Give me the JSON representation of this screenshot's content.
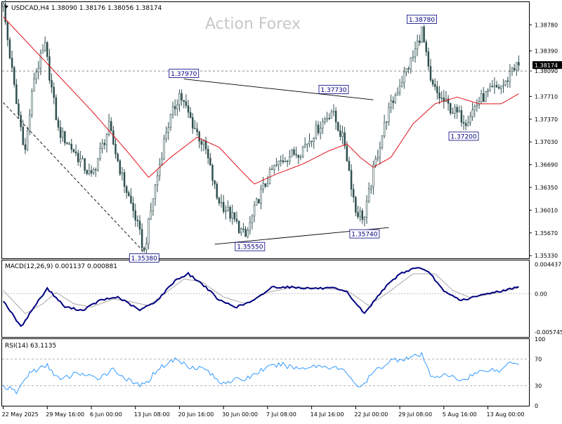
{
  "header": {
    "symbol_line": "USDCAD,H4  1.38090 1.38176 1.38056 1.38174",
    "watermark": "Action Forex"
  },
  "colors": {
    "candle": "#2f4f4f",
    "ma": "#e0101c",
    "macd": "#000080",
    "signal": "#a8a8a8",
    "rsi": "#1e90ff",
    "grid": "#c0c0c0",
    "bid_label_bg": "#000000",
    "bid_label_text": "#ffffff"
  },
  "chart_data": [
    {
      "type": "candlestick",
      "panel": "price",
      "title": "USDCAD,H4",
      "ohlc_header": {
        "open": 1.3809,
        "high": 1.38176,
        "low": 1.38056,
        "close": 1.38174
      },
      "ylim": [
        1.3529,
        1.3912
      ],
      "y_ticks": [
        "1.38780",
        "1.38390",
        "1.38090",
        "1.37710",
        "1.37370",
        "1.37030",
        "1.36690",
        "1.36350",
        "1.36010",
        "1.35670",
        "1.35330"
      ],
      "y_tick_values": [
        1.3878,
        1.3839,
        1.3809,
        1.3771,
        1.3737,
        1.3703,
        1.3669,
        1.3635,
        1.3601,
        1.3567,
        1.3533
      ],
      "current_price_label": "1.38174",
      "current_price": 1.38174,
      "reference_line": 1.3809,
      "x_labels": [
        "22 May 2025",
        "29 May 16:00",
        "6 Jun 00:00",
        "13 Jun 08:00",
        "20 Jun 16:00",
        "30 Jun 00:00",
        "7 Jul 08:00",
        "14 Jul 16:00",
        "22 Jul 00:00",
        "29 Jul 08:00",
        "5 Aug 16:00",
        "13 Aug 00:00"
      ],
      "x_label_bars": [
        0,
        20,
        40,
        60,
        80,
        100,
        120,
        140,
        160,
        180,
        200,
        220
      ],
      "bar_count": 235,
      "anchors": [
        {
          "bar": 0,
          "price": 1.3905
        },
        {
          "bar": 6,
          "price": 1.376
        },
        {
          "bar": 10,
          "price": 1.369
        },
        {
          "bar": 14,
          "price": 1.38
        },
        {
          "bar": 19,
          "price": 1.3845
        },
        {
          "bar": 25,
          "price": 1.372
        },
        {
          "bar": 32,
          "price": 1.369
        },
        {
          "bar": 40,
          "price": 1.365
        },
        {
          "bar": 48,
          "price": 1.3725
        },
        {
          "bar": 54,
          "price": 1.365
        },
        {
          "bar": 60,
          "price": 1.359
        },
        {
          "bar": 64,
          "price": 1.3538
        },
        {
          "bar": 68,
          "price": 1.362
        },
        {
          "bar": 74,
          "price": 1.372
        },
        {
          "bar": 80,
          "price": 1.3775
        },
        {
          "bar": 86,
          "price": 1.373
        },
        {
          "bar": 92,
          "price": 1.369
        },
        {
          "bar": 97,
          "price": 1.362
        },
        {
          "bar": 104,
          "price": 1.359
        },
        {
          "bar": 110,
          "price": 1.356
        },
        {
          "bar": 116,
          "price": 1.362
        },
        {
          "bar": 122,
          "price": 1.366
        },
        {
          "bar": 128,
          "price": 1.368
        },
        {
          "bar": 135,
          "price": 1.369
        },
        {
          "bar": 142,
          "price": 1.372
        },
        {
          "bar": 149,
          "price": 1.375
        },
        {
          "bar": 155,
          "price": 1.37
        },
        {
          "bar": 160,
          "price": 1.36
        },
        {
          "bar": 164,
          "price": 1.359
        },
        {
          "bar": 168,
          "price": 1.366
        },
        {
          "bar": 174,
          "price": 1.374
        },
        {
          "bar": 180,
          "price": 1.379
        },
        {
          "bar": 186,
          "price": 1.383
        },
        {
          "bar": 190,
          "price": 1.387
        },
        {
          "bar": 194,
          "price": 1.379
        },
        {
          "bar": 198,
          "price": 1.377
        },
        {
          "bar": 204,
          "price": 1.375
        },
        {
          "bar": 210,
          "price": 1.3735
        },
        {
          "bar": 216,
          "price": 1.3765
        },
        {
          "bar": 222,
          "price": 1.378
        },
        {
          "bar": 228,
          "price": 1.379
        },
        {
          "bar": 231,
          "price": 1.3815
        },
        {
          "bar": 234,
          "price": 1.3817
        }
      ],
      "moving_average": [
        {
          "bar": 0,
          "price": 1.389
        },
        {
          "bar": 20,
          "price": 1.382
        },
        {
          "bar": 40,
          "price": 1.375
        },
        {
          "bar": 56,
          "price": 1.369
        },
        {
          "bar": 66,
          "price": 1.365
        },
        {
          "bar": 76,
          "price": 1.368
        },
        {
          "bar": 88,
          "price": 1.371
        },
        {
          "bar": 98,
          "price": 1.3695
        },
        {
          "bar": 108,
          "price": 1.366
        },
        {
          "bar": 114,
          "price": 1.364
        },
        {
          "bar": 124,
          "price": 1.3655
        },
        {
          "bar": 136,
          "price": 1.367
        },
        {
          "bar": 148,
          "price": 1.369
        },
        {
          "bar": 156,
          "price": 1.37
        },
        {
          "bar": 162,
          "price": 1.368
        },
        {
          "bar": 168,
          "price": 1.3665
        },
        {
          "bar": 176,
          "price": 1.368
        },
        {
          "bar": 186,
          "price": 1.373
        },
        {
          "bar": 196,
          "price": 1.376
        },
        {
          "bar": 206,
          "price": 1.377
        },
        {
          "bar": 216,
          "price": 1.376
        },
        {
          "bar": 226,
          "price": 1.376
        },
        {
          "bar": 234,
          "price": 1.3775
        }
      ],
      "annotations": [
        {
          "label": "1.35380",
          "bar": 64,
          "price": 1.3538,
          "anchor": "below"
        },
        {
          "label": "1.37970",
          "bar": 82,
          "price": 1.3797,
          "anchor": "above"
        },
        {
          "label": "1.35550",
          "bar": 112,
          "price": 1.3555,
          "anchor": "below"
        },
        {
          "label": "1.37730",
          "bar": 150,
          "price": 1.3773,
          "anchor": "above"
        },
        {
          "label": "1.35740",
          "bar": 164,
          "price": 1.3574,
          "anchor": "below"
        },
        {
          "label": "1.38780",
          "bar": 190,
          "price": 1.3878,
          "anchor": "above"
        },
        {
          "label": "1.37200",
          "bar": 209,
          "price": 1.372,
          "anchor": "below"
        }
      ],
      "trendlines": [
        {
          "from": {
            "bar": 0,
            "price": 1.3762
          },
          "to": {
            "bar": 64,
            "price": 1.3538
          },
          "style": "dashed"
        },
        {
          "from": {
            "bar": 82,
            "price": 1.3797
          },
          "to": {
            "bar": 168,
            "price": 1.3766
          },
          "style": "solid"
        },
        {
          "from": {
            "bar": 96,
            "price": 1.355
          },
          "to": {
            "bar": 175,
            "price": 1.3575
          },
          "style": "solid"
        }
      ]
    },
    {
      "type": "line",
      "panel": "macd",
      "title": "MACD(12,26,9) 0.001137 0.000881",
      "ylim": [
        -0.0065,
        0.005
      ],
      "y_ticks": [
        "0.004437",
        "0.00",
        "-0.005745"
      ],
      "y_tick_values": [
        0.004437,
        0.0,
        -0.005745
      ],
      "marker_labels": [
        "0.001137",
        "0.000881"
      ],
      "macd_anchors": [
        {
          "bar": 0,
          "v": -0.001
        },
        {
          "bar": 8,
          "v": -0.005
        },
        {
          "bar": 14,
          "v": -0.002
        },
        {
          "bar": 20,
          "v": 0.0008
        },
        {
          "bar": 28,
          "v": -0.002
        },
        {
          "bar": 36,
          "v": -0.0025
        },
        {
          "bar": 44,
          "v": -0.001
        },
        {
          "bar": 52,
          "v": -0.0005
        },
        {
          "bar": 62,
          "v": -0.0025
        },
        {
          "bar": 70,
          "v": -0.001
        },
        {
          "bar": 78,
          "v": 0.002
        },
        {
          "bar": 84,
          "v": 0.003
        },
        {
          "bar": 92,
          "v": 0.001
        },
        {
          "bar": 98,
          "v": -0.001
        },
        {
          "bar": 106,
          "v": -0.002
        },
        {
          "bar": 114,
          "v": -0.001
        },
        {
          "bar": 122,
          "v": 0.001
        },
        {
          "bar": 130,
          "v": 0.001
        },
        {
          "bar": 140,
          "v": 0.0008
        },
        {
          "bar": 150,
          "v": 0.0008
        },
        {
          "bar": 156,
          "v": 0.0002
        },
        {
          "bar": 164,
          "v": -0.003
        },
        {
          "bar": 172,
          "v": 0.0005
        },
        {
          "bar": 180,
          "v": 0.003
        },
        {
          "bar": 188,
          "v": 0.004
        },
        {
          "bar": 194,
          "v": 0.003
        },
        {
          "bar": 200,
          "v": 0.0003
        },
        {
          "bar": 208,
          "v": -0.001
        },
        {
          "bar": 214,
          "v": -0.0005
        },
        {
          "bar": 222,
          "v": 0.0002
        },
        {
          "bar": 228,
          "v": 0.0005
        },
        {
          "bar": 234,
          "v": 0.001137
        }
      ],
      "signal_anchors": [
        {
          "bar": 0,
          "v": 0.0005
        },
        {
          "bar": 10,
          "v": -0.003
        },
        {
          "bar": 18,
          "v": -0.0015
        },
        {
          "bar": 24,
          "v": 0.0002
        },
        {
          "bar": 32,
          "v": -0.0015
        },
        {
          "bar": 40,
          "v": -0.002
        },
        {
          "bar": 50,
          "v": -0.0008
        },
        {
          "bar": 58,
          "v": -0.0012
        },
        {
          "bar": 66,
          "v": -0.0018
        },
        {
          "bar": 74,
          "v": 0.0002
        },
        {
          "bar": 82,
          "v": 0.0022
        },
        {
          "bar": 90,
          "v": 0.0018
        },
        {
          "bar": 100,
          "v": -0.0005
        },
        {
          "bar": 110,
          "v": -0.0015
        },
        {
          "bar": 120,
          "v": 0.0002
        },
        {
          "bar": 132,
          "v": 0.001
        },
        {
          "bar": 146,
          "v": 0.0008
        },
        {
          "bar": 156,
          "v": 0.0005
        },
        {
          "bar": 166,
          "v": -0.0018
        },
        {
          "bar": 176,
          "v": 0.0005
        },
        {
          "bar": 186,
          "v": 0.003
        },
        {
          "bar": 196,
          "v": 0.003
        },
        {
          "bar": 204,
          "v": 0.0005
        },
        {
          "bar": 212,
          "v": -0.0006
        },
        {
          "bar": 222,
          "v": 0.0
        },
        {
          "bar": 234,
          "v": 0.000881
        }
      ]
    },
    {
      "type": "line",
      "panel": "rsi",
      "title": "RSI(14) 63.1135",
      "ylim": [
        0,
        100
      ],
      "y_ticks": [
        "100",
        "70",
        "30",
        "0"
      ],
      "y_tick_values": [
        100,
        70,
        30,
        0
      ],
      "levels": [
        70,
        30
      ],
      "rsi_anchors": [
        {
          "bar": 0,
          "v": 30
        },
        {
          "bar": 6,
          "v": 20
        },
        {
          "bar": 12,
          "v": 50
        },
        {
          "bar": 20,
          "v": 60
        },
        {
          "bar": 26,
          "v": 38
        },
        {
          "bar": 34,
          "v": 50
        },
        {
          "bar": 42,
          "v": 40
        },
        {
          "bar": 50,
          "v": 55
        },
        {
          "bar": 58,
          "v": 35
        },
        {
          "bar": 64,
          "v": 30
        },
        {
          "bar": 70,
          "v": 55
        },
        {
          "bar": 78,
          "v": 70
        },
        {
          "bar": 84,
          "v": 60
        },
        {
          "bar": 92,
          "v": 55
        },
        {
          "bar": 98,
          "v": 35
        },
        {
          "bar": 104,
          "v": 38
        },
        {
          "bar": 110,
          "v": 40
        },
        {
          "bar": 118,
          "v": 55
        },
        {
          "bar": 126,
          "v": 62
        },
        {
          "bar": 134,
          "v": 56
        },
        {
          "bar": 142,
          "v": 60
        },
        {
          "bar": 150,
          "v": 58
        },
        {
          "bar": 156,
          "v": 50
        },
        {
          "bar": 162,
          "v": 25
        },
        {
          "bar": 168,
          "v": 50
        },
        {
          "bar": 176,
          "v": 68
        },
        {
          "bar": 184,
          "v": 72
        },
        {
          "bar": 190,
          "v": 76
        },
        {
          "bar": 194,
          "v": 45
        },
        {
          "bar": 202,
          "v": 45
        },
        {
          "bar": 208,
          "v": 38
        },
        {
          "bar": 214,
          "v": 48
        },
        {
          "bar": 220,
          "v": 55
        },
        {
          "bar": 226,
          "v": 52
        },
        {
          "bar": 230,
          "v": 68
        },
        {
          "bar": 234,
          "v": 63.1135
        }
      ]
    }
  ]
}
